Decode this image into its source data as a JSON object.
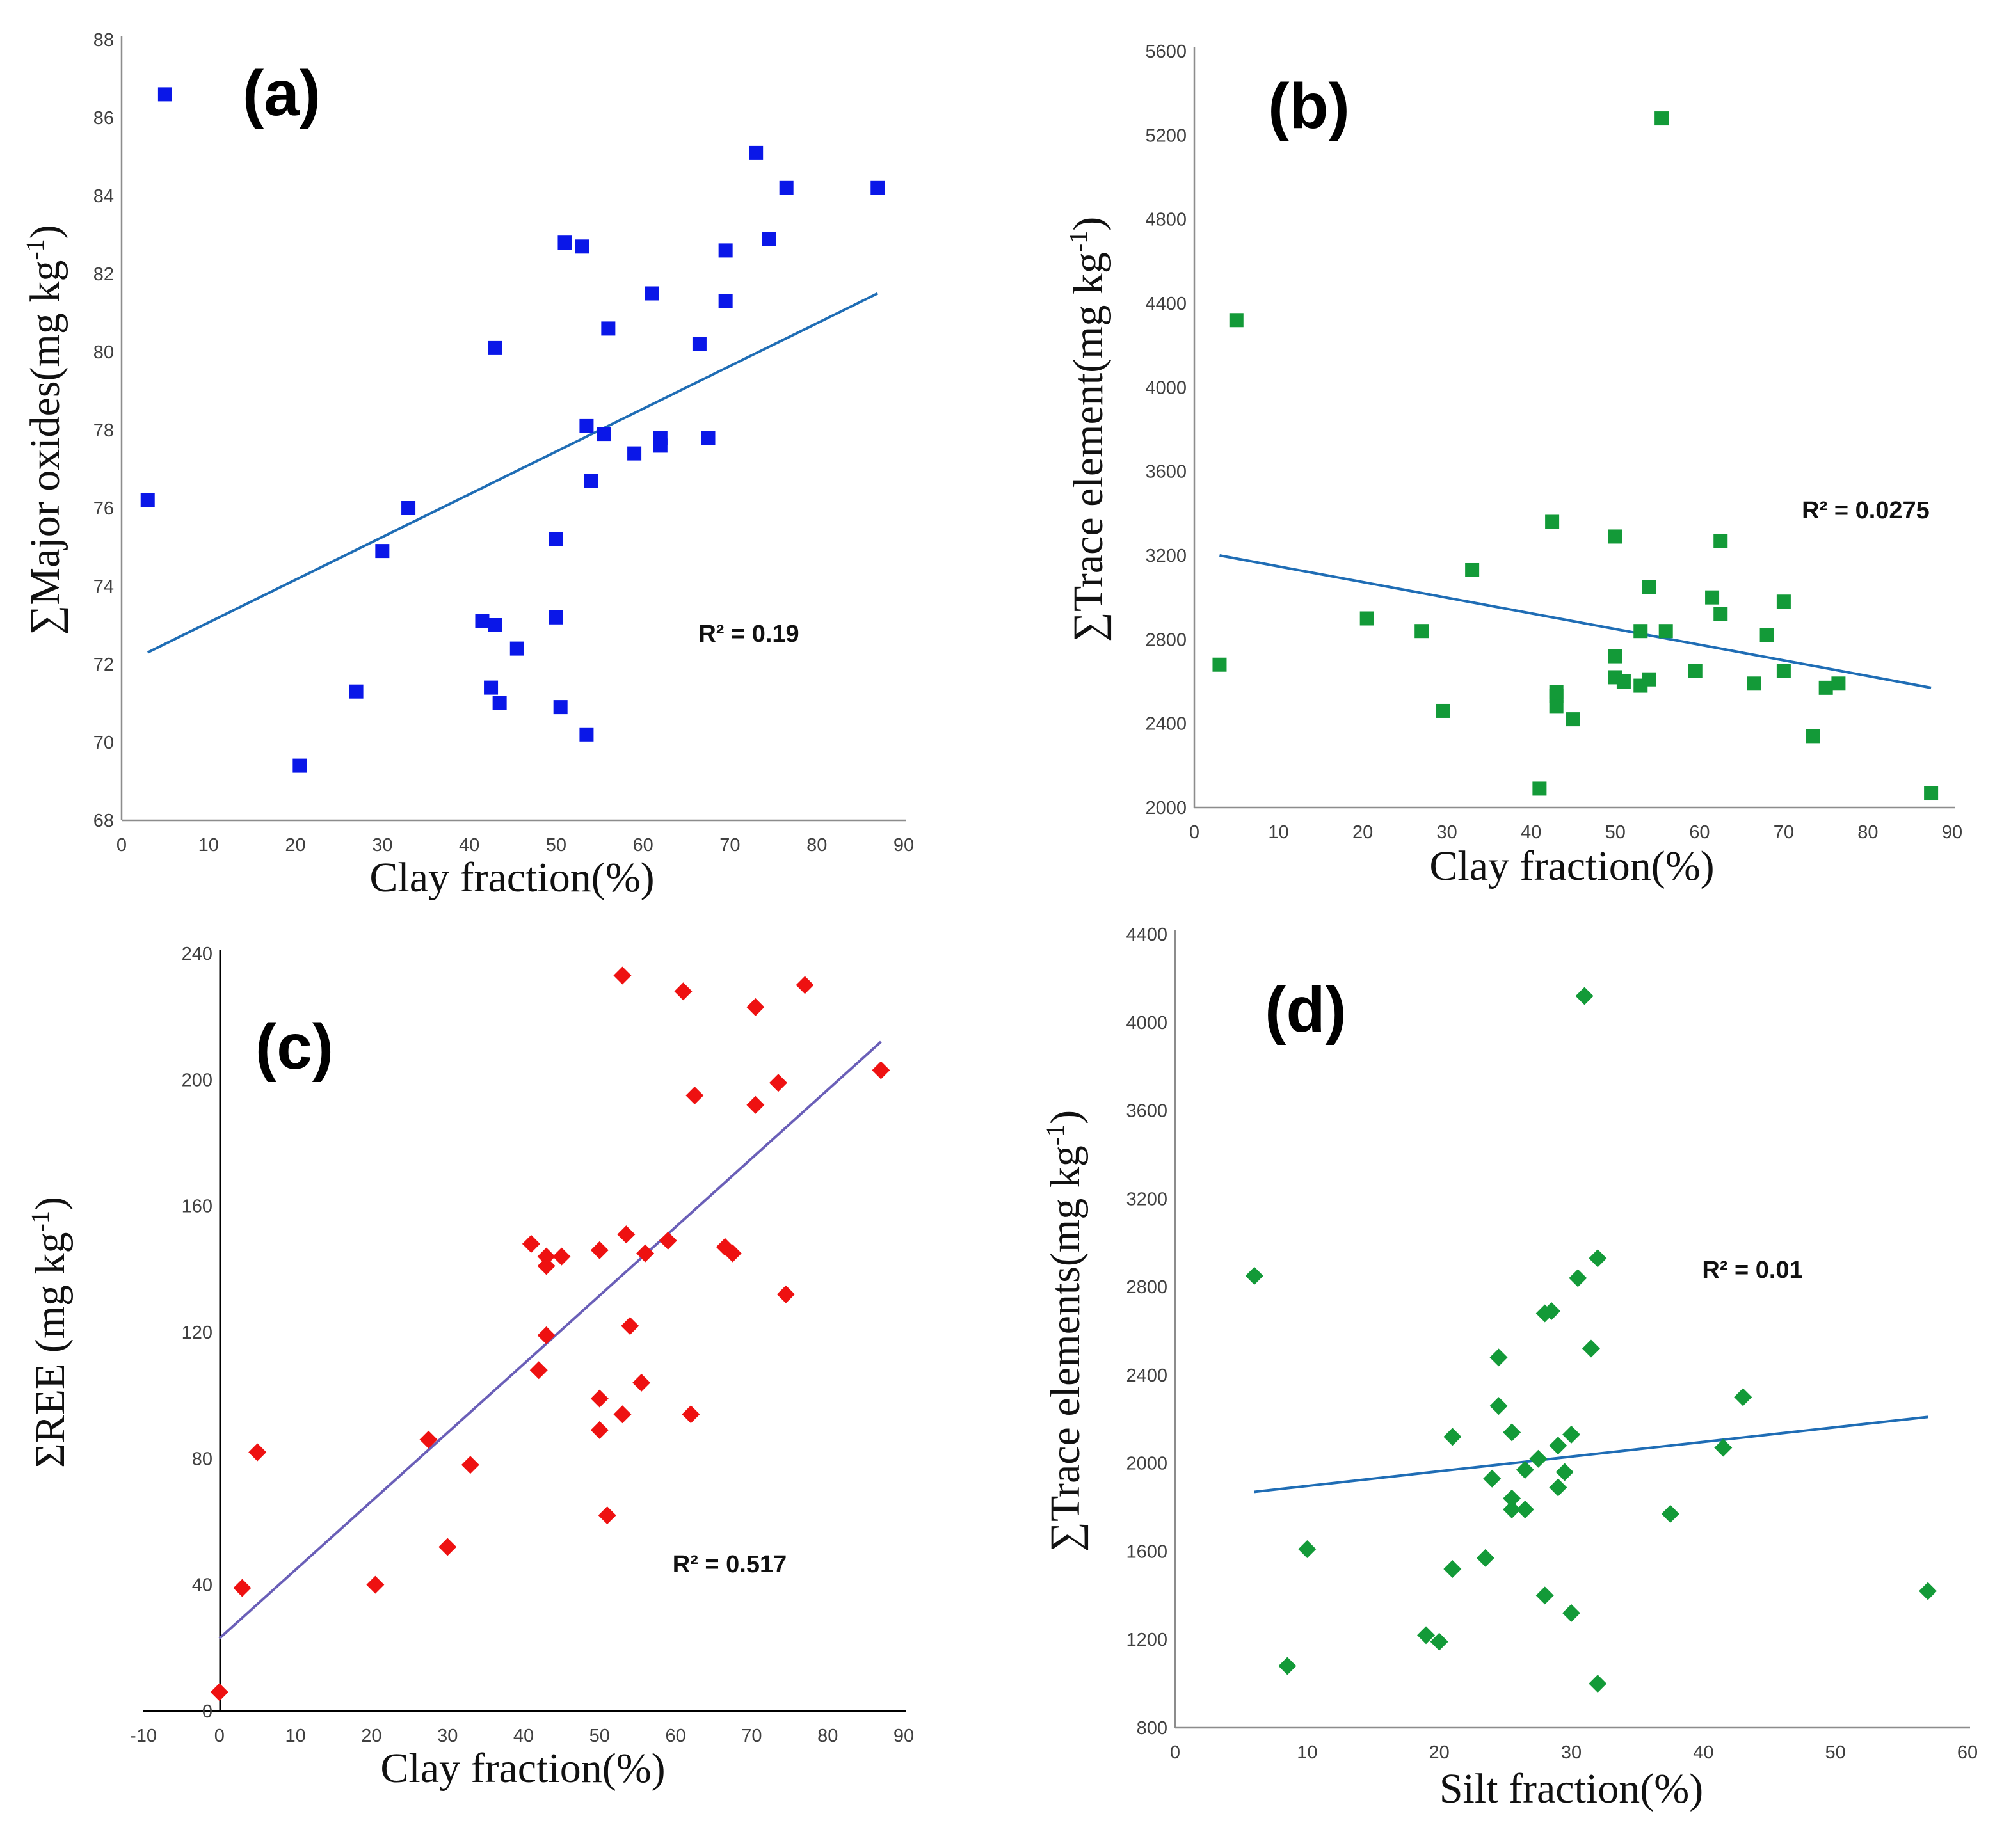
{
  "chart_data": [
    {
      "panel": "(a)",
      "type": "scatter",
      "marker": "square",
      "marker_color": "#0a17e8",
      "trend_color": "#1f6db5",
      "xlabel": "Clay fraction(%)",
      "ylabel": "∑Major oxides(mg kg-1)",
      "ylabel_main": "∑Major oxides(mg kg",
      "ylabel_sup": "-1",
      "ylabel_end": ")",
      "xlim": [
        0,
        90
      ],
      "ylim": [
        68,
        88
      ],
      "x_ticks": [
        "0",
        "10",
        "20",
        "30",
        "40",
        "50",
        "60",
        "70",
        "80",
        "90"
      ],
      "y_ticks": [
        "68",
        "70",
        "72",
        "74",
        "76",
        "78",
        "80",
        "82",
        "84",
        "86",
        "88"
      ],
      "r2": "R² = 0.19",
      "trendline": [
        [
          3,
          72.3
        ],
        [
          87,
          81.5
        ]
      ],
      "points": [
        [
          5,
          86.6
        ],
        [
          3,
          76.2
        ],
        [
          20.5,
          69.4
        ],
        [
          27,
          71.3
        ],
        [
          30,
          74.9
        ],
        [
          33,
          76.0
        ],
        [
          41.5,
          73.1
        ],
        [
          42.5,
          71.4
        ],
        [
          43,
          73.0
        ],
        [
          43.5,
          71.0
        ],
        [
          43,
          80.1
        ],
        [
          45.5,
          72.4
        ],
        [
          50,
          75.2
        ],
        [
          50,
          73.2
        ],
        [
          50.5,
          70.9
        ],
        [
          51,
          82.8
        ],
        [
          53,
          82.7
        ],
        [
          53.5,
          70.2
        ],
        [
          53.5,
          78.1
        ],
        [
          54,
          76.7
        ],
        [
          55.5,
          77.9
        ],
        [
          56,
          80.6
        ],
        [
          59,
          77.4
        ],
        [
          61,
          81.5
        ],
        [
          62,
          77.8
        ],
        [
          62,
          77.6
        ],
        [
          66.5,
          80.2
        ],
        [
          67.5,
          77.8
        ],
        [
          69.5,
          82.6
        ],
        [
          69.5,
          81.3
        ],
        [
          73,
          85.1
        ],
        [
          74.5,
          82.9
        ],
        [
          76.5,
          84.2
        ],
        [
          87,
          84.2
        ]
      ]
    },
    {
      "panel": "(b)",
      "type": "scatter",
      "marker": "square",
      "marker_color": "#139a38",
      "trend_color": "#1f6db5",
      "xlabel": "Clay fraction(%)",
      "ylabel": "∑Trace element(mg kg-1)",
      "ylabel_main": "∑Trace element(mg kg",
      "ylabel_sup": "-1",
      "ylabel_end": ")",
      "xlim": [
        0,
        90
      ],
      "ylim": [
        2000,
        5600
      ],
      "x_ticks": [
        "0",
        "10",
        "20",
        "30",
        "40",
        "50",
        "60",
        "70",
        "80",
        "90"
      ],
      "y_ticks": [
        "2000",
        "2400",
        "2800",
        "3200",
        "3600",
        "4000",
        "4400",
        "4800",
        "5200",
        "5600"
      ],
      "r2": "R² = 0.0275",
      "trendline": [
        [
          3,
          3200
        ],
        [
          87.5,
          2570
        ]
      ],
      "points": [
        [
          3,
          2680
        ],
        [
          5,
          4320
        ],
        [
          20.5,
          2900
        ],
        [
          27,
          2840
        ],
        [
          29.5,
          2460
        ],
        [
          33,
          3130
        ],
        [
          41,
          2090
        ],
        [
          42.5,
          3360
        ],
        [
          43,
          2550
        ],
        [
          43,
          2530
        ],
        [
          43,
          2480
        ],
        [
          45,
          2420
        ],
        [
          50,
          3290
        ],
        [
          50,
          2720
        ],
        [
          50,
          2620
        ],
        [
          51,
          2600
        ],
        [
          53,
          2840
        ],
        [
          53,
          2580
        ],
        [
          54,
          3050
        ],
        [
          54,
          2610
        ],
        [
          56,
          2840
        ],
        [
          59.5,
          2650
        ],
        [
          61.5,
          3000
        ],
        [
          62.5,
          3270
        ],
        [
          62.5,
          2920
        ],
        [
          66.5,
          2590
        ],
        [
          68,
          2820
        ],
        [
          70,
          2980
        ],
        [
          70,
          2650
        ],
        [
          73.5,
          2340
        ],
        [
          75,
          2570
        ],
        [
          76.5,
          2590
        ],
        [
          55.5,
          5280
        ],
        [
          87.5,
          2070
        ]
      ]
    },
    {
      "panel": "(c)",
      "type": "scatter",
      "marker": "diamond",
      "marker_color": "#ee1111",
      "trend_color": "#6a5fb8",
      "xlabel": "Clay fraction(%)",
      "ylabel": "ΣREE (mg kg-1)",
      "ylabel_main": "ΣREE (mg kg",
      "ylabel_sup": "-1",
      "ylabel_end": ")",
      "xlim": [
        -10,
        90
      ],
      "ylim": [
        0,
        240
      ],
      "x_ticks": [
        "-10",
        "0",
        "10",
        "20",
        "30",
        "40",
        "50",
        "60",
        "70",
        "80",
        "90"
      ],
      "y_ticks": [
        "0",
        "40",
        "80",
        "120",
        "160",
        "200",
        "240"
      ],
      "r2": "R² = 0.517",
      "trendline": [
        [
          0,
          23
        ],
        [
          87,
          212
        ]
      ],
      "points": [
        [
          0,
          6
        ],
        [
          3,
          39
        ],
        [
          5,
          82
        ],
        [
          20.5,
          40
        ],
        [
          27.5,
          86
        ],
        [
          30,
          52
        ],
        [
          33,
          78
        ],
        [
          41,
          148
        ],
        [
          42,
          108
        ],
        [
          43,
          144
        ],
        [
          43,
          141
        ],
        [
          43,
          119
        ],
        [
          45,
          144
        ],
        [
          50,
          146
        ],
        [
          50,
          99
        ],
        [
          50,
          89
        ],
        [
          51,
          62
        ],
        [
          53,
          233
        ],
        [
          53,
          94
        ],
        [
          53.5,
          151
        ],
        [
          54,
          122
        ],
        [
          55.5,
          104
        ],
        [
          56,
          145
        ],
        [
          59,
          149
        ],
        [
          61,
          228
        ],
        [
          62,
          94
        ],
        [
          62.5,
          195
        ],
        [
          66.5,
          147
        ],
        [
          67.5,
          145
        ],
        [
          70.5,
          223
        ],
        [
          70.5,
          192
        ],
        [
          73.5,
          199
        ],
        [
          74.5,
          132
        ],
        [
          77,
          230
        ],
        [
          87,
          203
        ]
      ]
    },
    {
      "panel": "(d)",
      "type": "scatter",
      "marker": "diamond",
      "marker_color": "#139a38",
      "trend_color": "#1f6db5",
      "xlabel": "Silt fraction(%)",
      "ylabel": "∑Trace elements(mg kg-1)",
      "ylabel_main": "∑Trace elements(mg kg",
      "ylabel_sup": "-1",
      "ylabel_end": ")",
      "xlim": [
        0,
        60
      ],
      "ylim": [
        800,
        4400
      ],
      "x_ticks": [
        "0",
        "10",
        "20",
        "30",
        "40",
        "50",
        "60"
      ],
      "y_ticks": [
        "800",
        "1200",
        "1600",
        "2000",
        "2400",
        "2800",
        "3200",
        "3600",
        "4000",
        "4400"
      ],
      "r2": "R² = 0.01",
      "trendline": [
        [
          6,
          1870
        ],
        [
          57,
          2210
        ]
      ],
      "points": [
        [
          6,
          2850
        ],
        [
          8.5,
          1080
        ],
        [
          10,
          1610
        ],
        [
          19,
          1220
        ],
        [
          20,
          1190
        ],
        [
          21,
          1520
        ],
        [
          21,
          2120
        ],
        [
          23.5,
          1570
        ],
        [
          24,
          1930
        ],
        [
          24.5,
          2480
        ],
        [
          24.5,
          2260
        ],
        [
          25.5,
          2140
        ],
        [
          25.5,
          1840
        ],
        [
          25.5,
          1790
        ],
        [
          26.5,
          1790
        ],
        [
          26.5,
          1970
        ],
        [
          27.5,
          2020
        ],
        [
          28,
          1400
        ],
        [
          28,
          2680
        ],
        [
          28.5,
          2690
        ],
        [
          29,
          1890
        ],
        [
          29,
          2080
        ],
        [
          29.5,
          1960
        ],
        [
          30,
          1320
        ],
        [
          30,
          2130
        ],
        [
          30.5,
          2840
        ],
        [
          31,
          4120
        ],
        [
          31.5,
          2520
        ],
        [
          32,
          1000
        ],
        [
          32,
          2930
        ],
        [
          37.5,
          1770
        ],
        [
          41.5,
          2070
        ],
        [
          43,
          2300
        ],
        [
          57,
          1420
        ]
      ]
    }
  ]
}
